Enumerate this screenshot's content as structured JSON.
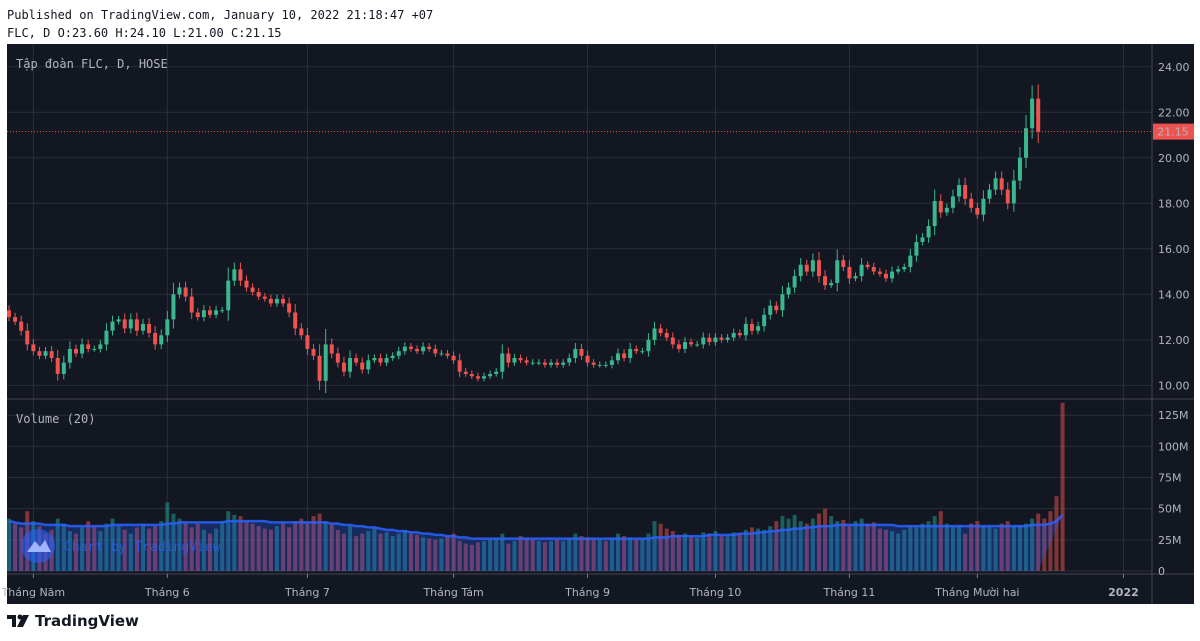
{
  "header": {
    "published": "Published on TradingView.com, January 10, 2022 21:18:47 +07",
    "ohlc": "FLC, D O:23.60 H:24.10 L:21.00 C:21.15"
  },
  "footer": {
    "brand": "TradingView"
  },
  "chart_data": {
    "type": "candlestick",
    "symbol_label": "Tập đoàn FLC, D, HOSE",
    "volume_label": "Volume (20)",
    "watermark": "Chart by TradingView",
    "last_price": "21.15",
    "last_price_value": 21.15,
    "price_axis": {
      "ticks": [
        10.0,
        12.0,
        14.0,
        16.0,
        18.0,
        20.0,
        22.0,
        24.0
      ],
      "tick_labels": [
        "10.00",
        "12.00",
        "14.00",
        "16.00",
        "18.00",
        "20.00",
        "22.00",
        "24.00"
      ],
      "range": [
        9.4,
        25.0
      ]
    },
    "volume_axis": {
      "ticks": [
        0,
        25,
        50,
        75,
        100,
        125
      ],
      "tick_labels": [
        "0",
        "25M",
        "50M",
        "75M",
        "100M",
        "125M"
      ],
      "range": [
        0,
        138
      ]
    },
    "time_axis": [
      {
        "label": "Tháng Năm",
        "index": 4
      },
      {
        "label": "Tháng 6",
        "index": 26
      },
      {
        "label": "Tháng 7",
        "index": 49
      },
      {
        "label": "Tháng Tám",
        "index": 73
      },
      {
        "label": "Tháng 9",
        "index": 95
      },
      {
        "label": "Tháng 10",
        "index": 116
      },
      {
        "label": "Tháng 11",
        "index": 138
      },
      {
        "label": "Tháng Mười hai",
        "index": 159
      },
      {
        "label": "2022",
        "index": 183
      }
    ],
    "close": [
      13.0,
      12.8,
      12.4,
      11.8,
      11.5,
      11.3,
      11.5,
      11.2,
      10.5,
      11.0,
      11.6,
      11.4,
      11.8,
      11.6,
      11.6,
      11.8,
      12.4,
      12.8,
      12.9,
      12.5,
      12.9,
      12.4,
      12.7,
      12.3,
      11.8,
      12.2,
      12.9,
      14.0,
      14.3,
      13.9,
      13.2,
      13.0,
      13.3,
      13.1,
      13.3,
      13.3,
      14.6,
      15.1,
      14.6,
      14.3,
      14.1,
      13.9,
      13.8,
      13.6,
      13.8,
      13.6,
      13.2,
      12.5,
      12.2,
      11.6,
      11.3,
      10.2,
      11.8,
      11.4,
      11.0,
      10.6,
      11.2,
      11.0,
      10.7,
      11.1,
      11.2,
      11.0,
      11.2,
      11.3,
      11.5,
      11.7,
      11.6,
      11.5,
      11.7,
      11.6,
      11.4,
      11.4,
      11.3,
      11.1,
      10.6,
      10.5,
      10.4,
      10.3,
      10.4,
      10.5,
      10.6,
      11.4,
      11.0,
      11.2,
      11.1,
      11.0,
      11.0,
      11.0,
      10.9,
      11.0,
      10.9,
      11.0,
      11.2,
      11.6,
      11.3,
      11.0,
      10.9,
      10.9,
      10.9,
      11.1,
      11.4,
      11.2,
      11.6,
      11.5,
      11.5,
      12.0,
      12.5,
      12.3,
      12.1,
      11.8,
      11.6,
      11.9,
      11.8,
      11.8,
      12.1,
      11.9,
      12.1,
      12.0,
      12.1,
      12.3,
      12.2,
      12.7,
      12.4,
      12.6,
      13.1,
      13.5,
      13.3,
      14.0,
      14.3,
      14.8,
      15.3,
      15.0,
      15.5,
      14.8,
      14.4,
      14.5,
      15.5,
      15.2,
      14.7,
      14.8,
      15.3,
      15.2,
      15.0,
      14.9,
      14.7,
      15.0,
      15.1,
      15.2,
      15.7,
      16.3,
      16.5,
      17.0,
      18.1,
      17.6,
      17.8,
      18.3,
      18.8,
      18.2,
      17.8,
      17.5,
      18.2,
      18.6,
      19.1,
      18.6,
      18.0,
      19.0,
      20.0,
      21.3,
      22.6,
      21.15
    ],
    "volume_millions": [
      42,
      38,
      35,
      48,
      40,
      36,
      30,
      33,
      42,
      38,
      32,
      30,
      35,
      40,
      36,
      32,
      38,
      42,
      36,
      33,
      30,
      35,
      38,
      34,
      36,
      40,
      55,
      46,
      42,
      38,
      35,
      38,
      33,
      30,
      34,
      40,
      48,
      45,
      44,
      40,
      38,
      36,
      34,
      33,
      36,
      38,
      35,
      40,
      42,
      38,
      44,
      46,
      40,
      38,
      33,
      30,
      36,
      28,
      30,
      32,
      34,
      30,
      31,
      28,
      30,
      33,
      30,
      29,
      27,
      26,
      25,
      26,
      28,
      30,
      24,
      22,
      21,
      23,
      24,
      25,
      26,
      30,
      22,
      24,
      28,
      26,
      25,
      24,
      23,
      24,
      25,
      24,
      26,
      30,
      28,
      27,
      26,
      25,
      24,
      26,
      30,
      28,
      27,
      26,
      25,
      30,
      40,
      38,
      34,
      32,
      29,
      30,
      28,
      27,
      31,
      30,
      32,
      29,
      28,
      31,
      30,
      33,
      35,
      34,
      33,
      36,
      40,
      44,
      42,
      45,
      40,
      38,
      42,
      46,
      50,
      44,
      40,
      41,
      36,
      40,
      42,
      38,
      39,
      34,
      33,
      32,
      30,
      33,
      36,
      35,
      38,
      40,
      44,
      48,
      38,
      36,
      37,
      30,
      38,
      40,
      36,
      35,
      34,
      38,
      40,
      36,
      36,
      38,
      42,
      46,
      42,
      48,
      60,
      135
    ],
    "volume_direction": [
      "u",
      "d",
      "d",
      "d",
      "u",
      "d",
      "d",
      "d",
      "u",
      "u",
      "u",
      "d",
      "u",
      "d",
      "d",
      "u",
      "u",
      "u",
      "u",
      "d",
      "u",
      "d",
      "u",
      "d",
      "d",
      "u",
      "u",
      "u",
      "u",
      "d",
      "d",
      "d",
      "u",
      "d",
      "u",
      "u",
      "u",
      "u",
      "d",
      "d",
      "d",
      "d",
      "d",
      "d",
      "u",
      "d",
      "d",
      "d",
      "d",
      "d",
      "d",
      "d",
      "u",
      "d",
      "d",
      "d",
      "u",
      "d",
      "d",
      "u",
      "u",
      "d",
      "u",
      "u",
      "u",
      "u",
      "d",
      "d",
      "u",
      "d",
      "d",
      "u",
      "d",
      "d",
      "d",
      "d",
      "d",
      "d",
      "u",
      "u",
      "u",
      "u",
      "d",
      "u",
      "d",
      "d",
      "d",
      "u",
      "d",
      "u",
      "d",
      "u",
      "u",
      "u",
      "d",
      "d",
      "d",
      "u",
      "d",
      "u",
      "u",
      "d",
      "u",
      "d",
      "u",
      "u",
      "u",
      "d",
      "d",
      "d",
      "d",
      "u",
      "d",
      "u",
      "u",
      "d",
      "u",
      "d",
      "u",
      "u",
      "d",
      "u",
      "d",
      "u",
      "u",
      "u",
      "d",
      "u",
      "u",
      "u",
      "u",
      "d",
      "u",
      "d",
      "d",
      "u",
      "u",
      "d",
      "d",
      "u",
      "u",
      "d",
      "d",
      "d",
      "d",
      "u",
      "u",
      "u",
      "u",
      "u",
      "u",
      "u",
      "u",
      "d",
      "u",
      "u",
      "u",
      "d",
      "d",
      "d",
      "u",
      "u",
      "u",
      "d",
      "d",
      "u",
      "u",
      "u",
      "u",
      "d"
    ],
    "ma_volume_millions": [
      40,
      39,
      38,
      38,
      38,
      38,
      37,
      37,
      37,
      37,
      36,
      36,
      36,
      36,
      36,
      36,
      36,
      37,
      37,
      37,
      37,
      37,
      37,
      37,
      37,
      37,
      38,
      38,
      39,
      39,
      39,
      39,
      39,
      39,
      39,
      39,
      40,
      40,
      40,
      40,
      40,
      40,
      40,
      39,
      39,
      39,
      39,
      39,
      39,
      39,
      39,
      39,
      39,
      38,
      38,
      37,
      37,
      36,
      36,
      35,
      35,
      34,
      33,
      33,
      32,
      32,
      31,
      31,
      30,
      30,
      29,
      29,
      28,
      28,
      27,
      27,
      26,
      26,
      26,
      26,
      26,
      26,
      26,
      26,
      26,
      26,
      26,
      26,
      26,
      26,
      26,
      26,
      26,
      26,
      26,
      26,
      26,
      26,
      26,
      26,
      26,
      26,
      26,
      26,
      26,
      26,
      27,
      27,
      27,
      28,
      28,
      28,
      28,
      28,
      28,
      29,
      29,
      29,
      29,
      29,
      30,
      30,
      30,
      31,
      31,
      32,
      32,
      33,
      33,
      34,
      34,
      35,
      35,
      36,
      36,
      36,
      37,
      37,
      37,
      37,
      37,
      37,
      37,
      37,
      37,
      37,
      36,
      36,
      36,
      36,
      36,
      36,
      36,
      36,
      36,
      36,
      36,
      36,
      36,
      36,
      36,
      36,
      36,
      36,
      36,
      36,
      36,
      36,
      37,
      37,
      37,
      38,
      40,
      45
    ]
  },
  "colors": {
    "background": "#131722",
    "grid": "#2a2e39",
    "up": "#26a69a",
    "up_candle": "#3bb78f",
    "down": "#ef5350",
    "ma_line": "#2962ff",
    "text": "#b2b5be"
  }
}
